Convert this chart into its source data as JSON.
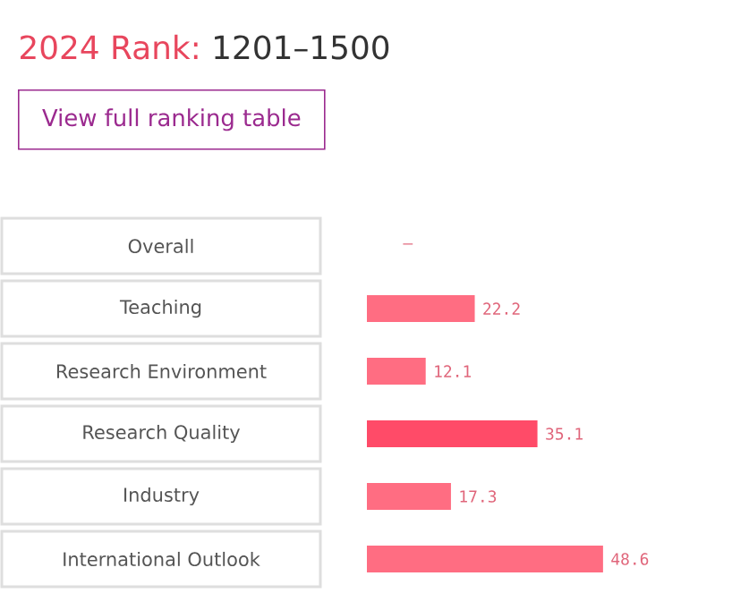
{
  "chart_data": {
    "type": "bar",
    "orientation": "horizontal",
    "title": "2024 Rank:",
    "subtitle": "1201–1500",
    "annotations": [
      "View full ranking table"
    ],
    "tick_labels": "y",
    "categories": [
      "Overall",
      "Teaching",
      "Research Environment",
      "Research Quality",
      "Industry",
      "International Outlook"
    ],
    "values": [
      null,
      22.2,
      12.1,
      35.1,
      17.3,
      48.6
    ],
    "value_labels": [
      "–",
      "22.2",
      "12.1",
      "35.1",
      "17.3",
      "48.6"
    ],
    "colors": [
      "#ff6d82",
      "#ff6d82",
      "#ff6d82",
      "#ff4b68",
      "#ff6d82",
      "#ff6d82"
    ]
  }
}
